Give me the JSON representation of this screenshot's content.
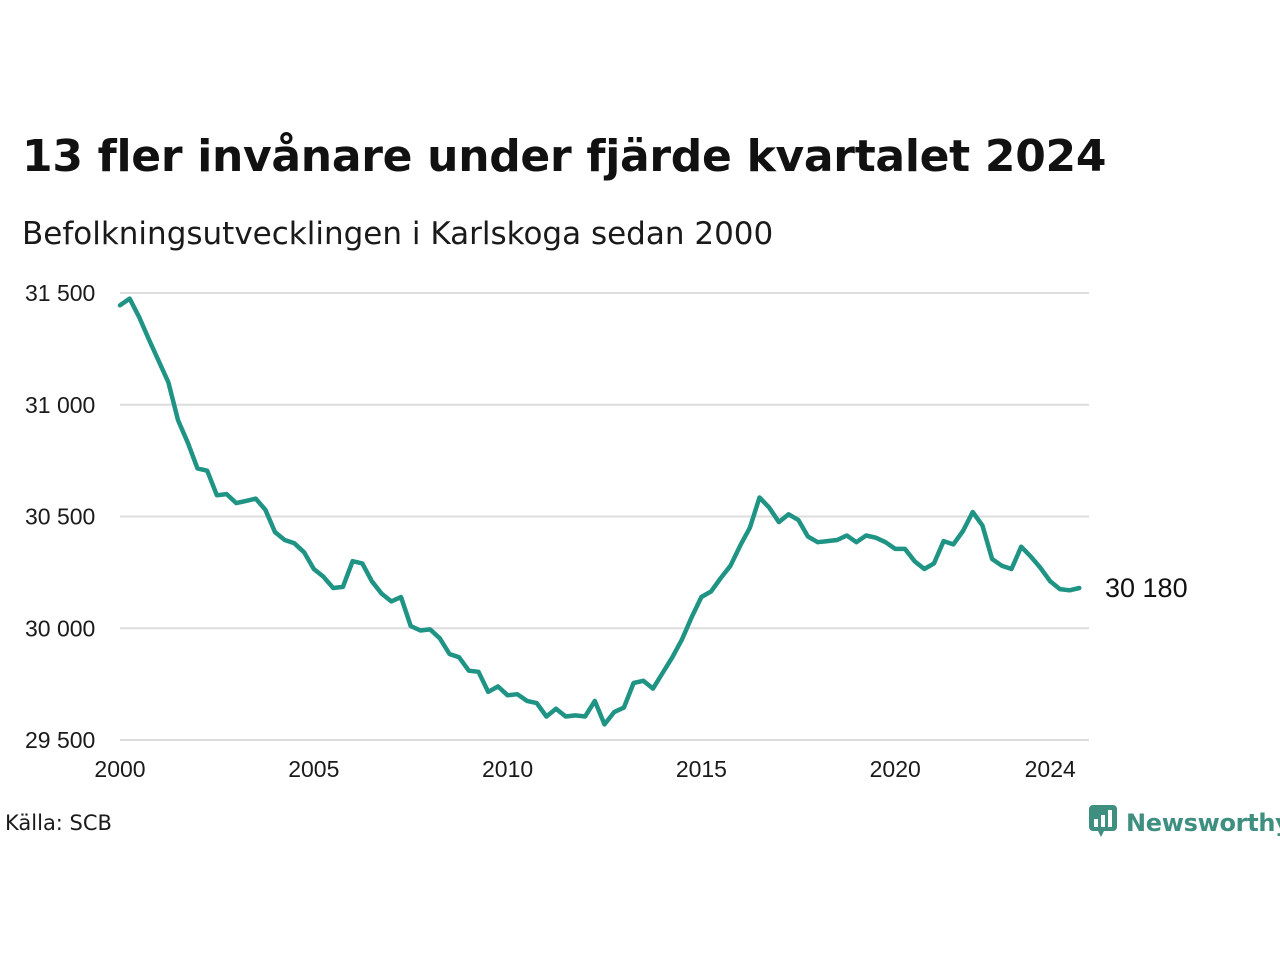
{
  "header": {
    "title": "13 fler invånare under fjärde kvartalet 2024",
    "subtitle": "Befolkningsutvecklingen i Karlskoga sedan 2000"
  },
  "footer": {
    "source": "Källa: SCB",
    "brand": "Newsworthy"
  },
  "colors": {
    "line": "#1f9484",
    "grid": "#dddddd",
    "brand": "#3f8f80"
  },
  "icons": {
    "brand_logo": "bar-chart-speech-bubble-icon"
  },
  "chart_data": {
    "type": "line",
    "title": "13 fler invånare under fjärde kvartalet 2024",
    "subtitle": "Befolkningsutvecklingen i Karlskoga sedan 2000",
    "xlabel": "",
    "ylabel": "",
    "xlim": [
      2000,
      2025
    ],
    "ylim": [
      29500,
      31500
    ],
    "x_ticks": [
      {
        "value": 2000,
        "label": "2000"
      },
      {
        "value": 2005,
        "label": "2005"
      },
      {
        "value": 2010,
        "label": "2010"
      },
      {
        "value": 2015,
        "label": "2015"
      },
      {
        "value": 2020,
        "label": "2020"
      },
      {
        "value": 2024,
        "label": "2024"
      }
    ],
    "y_ticks": [
      {
        "value": 29500,
        "label": "29 500"
      },
      {
        "value": 30000,
        "label": "30 000"
      },
      {
        "value": 30500,
        "label": "30 500"
      },
      {
        "value": 31000,
        "label": "31 000"
      },
      {
        "value": 31500,
        "label": "31 500"
      }
    ],
    "grid": true,
    "end_label": "30 180",
    "series": [
      {
        "x": [
          2000.0,
          2000.25,
          2000.5,
          2000.75,
          2001.0,
          2001.25,
          2001.5,
          2001.75,
          2002.0,
          2002.25,
          2002.5,
          2002.75,
          2003.0,
          2003.25,
          2003.5,
          2003.75,
          2004.0,
          2004.25,
          2004.5,
          2004.75,
          2005.0,
          2005.25,
          2005.5,
          2005.75,
          2006.0,
          2006.25,
          2006.5,
          2006.75,
          2007.0,
          2007.25,
          2007.5,
          2007.75,
          2008.0,
          2008.25,
          2008.5,
          2008.75,
          2009.0,
          2009.25,
          2009.5,
          2009.75,
          2010.0,
          2010.25,
          2010.5,
          2010.75,
          2011.0,
          2011.25,
          2011.5,
          2011.75,
          2012.0,
          2012.25,
          2012.5,
          2012.75,
          2013.0,
          2013.25,
          2013.5,
          2013.75,
          2014.0,
          2014.25,
          2014.5,
          2014.75,
          2015.0,
          2015.25,
          2015.5,
          2015.75,
          2016.0,
          2016.25,
          2016.5,
          2016.75,
          2017.0,
          2017.25,
          2017.5,
          2017.75,
          2018.0,
          2018.25,
          2018.5,
          2018.75,
          2019.0,
          2019.25,
          2019.5,
          2019.75,
          2020.0,
          2020.25,
          2020.5,
          2020.75,
          2021.0,
          2021.25,
          2021.5,
          2021.75,
          2022.0,
          2022.25,
          2022.5,
          2022.75,
          2023.0,
          2023.25,
          2023.5,
          2023.75,
          2024.0,
          2024.25,
          2024.5,
          2024.75
        ],
        "values": [
          31445,
          31475,
          31390,
          31290,
          31195,
          31100,
          30930,
          30830,
          30715,
          30705,
          30595,
          30600,
          30560,
          30570,
          30580,
          30530,
          30430,
          30395,
          30380,
          30340,
          30265,
          30230,
          30180,
          30185,
          30300,
          30290,
          30210,
          30155,
          30120,
          30140,
          30010,
          29990,
          29995,
          29955,
          29885,
          29870,
          29810,
          29805,
          29715,
          29740,
          29700,
          29705,
          29675,
          29665,
          29605,
          29640,
          29605,
          29610,
          29605,
          29675,
          29570,
          29625,
          29645,
          29755,
          29765,
          29730,
          29800,
          29870,
          29950,
          30050,
          30140,
          30165,
          30225,
          30280,
          30370,
          30450,
          30585,
          30540,
          30475,
          30510,
          30485,
          30410,
          30385,
          30390,
          30395,
          30415,
          30385,
          30415,
          30405,
          30385,
          30355,
          30355,
          30300,
          30265,
          30290,
          30390,
          30375,
          30435,
          30520,
          30460,
          30310,
          30280,
          30265,
          30365,
          30320,
          30270,
          30210,
          30175,
          30170,
          30180
        ]
      }
    ]
  }
}
